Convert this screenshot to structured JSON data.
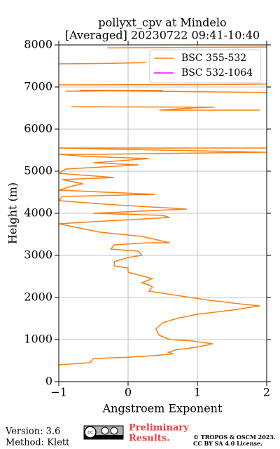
{
  "chart_data": {
    "type": "line",
    "orientation": "vertical",
    "title": [
      "pollyxt_cpv at Mindelo",
      "[Averaged] 20230722 09:41-10:40"
    ],
    "x_label": "Angstroem Exponent",
    "y_label": "Height (m)",
    "xlim": [
      -1,
      2
    ],
    "ylim": [
      0,
      8000
    ],
    "xticks": [
      {
        "value": -1,
        "label": "−1"
      },
      0,
      1,
      2
    ],
    "yticks": [
      0,
      1000,
      2000,
      3000,
      4000,
      5000,
      6000,
      7000,
      8000
    ],
    "grid": true,
    "legend": "upper right",
    "series": [
      {
        "name": "BSC 355-532",
        "color": "#ff7f0e",
        "x": [
          -1,
          -0.55,
          -0.5,
          0,
          0.4,
          0.65,
          0.58,
          0.7,
          1,
          1.22,
          0.9,
          0.6,
          0.45,
          0.4,
          0.5,
          0.7,
          1,
          1.5,
          1.9,
          1.6,
          1.1,
          0.5,
          0.3,
          0.35,
          0.3,
          0.2,
          0.35,
          0,
          0,
          -0.2,
          -0.2,
          0,
          0.2,
          0.15,
          -0.25,
          -0.2,
          0.3,
          0.6,
          0.2,
          -0.4,
          -0.7,
          -1,
          -0.5,
          0.6,
          0.5,
          -0.5,
          0.85,
          -0.2,
          -1,
          -0.95,
          0.4,
          -1,
          -0.8,
          -0.65,
          -0.95,
          -0.2,
          -1,
          -0.9,
          0.15,
          -0.5,
          0.3,
          -0.6,
          -1,
          -0.5,
          2,
          -1,
          2,
          null,
          -0.82,
          1.25,
          0.9,
          0.45,
          1.9,
          null,
          -0.9,
          0.5,
          -0.7,
          1.5,
          2,
          null,
          -1,
          1.5,
          2,
          null,
          -1,
          -0.3,
          0.25,
          null,
          -0.3,
          2
        ],
        "values": [
          400,
          450,
          550,
          580,
          620,
          660,
          700,
          760,
          820,
          900,
          970,
          1000,
          1100,
          1250,
          1400,
          1500,
          1600,
          1700,
          1800,
          1850,
          1950,
          2100,
          2150,
          2250,
          2300,
          2350,
          2450,
          2600,
          2700,
          2750,
          2850,
          2950,
          3000,
          3100,
          3150,
          3250,
          3300,
          3300,
          3450,
          3550,
          3650,
          3750,
          3800,
          3900,
          3950,
          4000,
          4100,
          4200,
          4300,
          4400,
          4450,
          4550,
          4650,
          4700,
          4800,
          4850,
          4950,
          5050,
          5150,
          5200,
          5300,
          5350,
          5400,
          5400,
          5450,
          5550,
          5550,
          null,
          6530,
          6520,
          6500,
          6450,
          6450,
          null,
          6900,
          6920,
          6920,
          6880,
          6870,
          null,
          7050,
          7060,
          7070,
          null,
          7550,
          7560,
          7580,
          null,
          7930,
          7950
        ]
      },
      {
        "name": "BSC 532-1064",
        "color": "#ff00ff",
        "x": [],
        "values": []
      }
    ]
  },
  "footer": {
    "version": "Version: 3.6",
    "method": "Method: Klett",
    "notice": [
      "Preliminary",
      "Results."
    ],
    "copyright": [
      "© TROPOS & OSCM 2023.",
      "CC BY SA 4.0 License."
    ]
  }
}
